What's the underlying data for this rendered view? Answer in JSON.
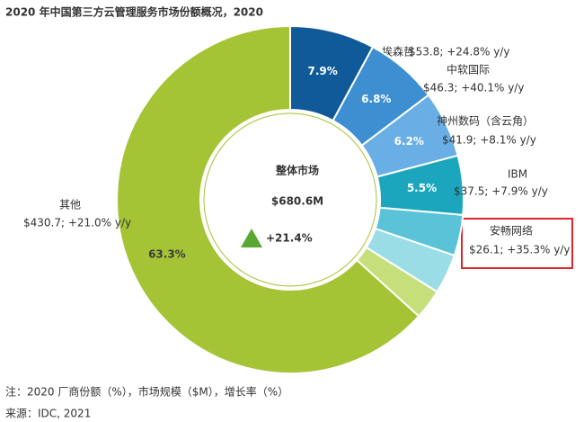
{
  "chart_data": {
    "type": "donut",
    "title": "2020 年中国第三方云管理服务市场份额概况，2020",
    "center_title": "整体市场",
    "center_value": "$680.6M",
    "center_growth": "+21.4%",
    "categories": [
      "埃森哲",
      "中软国际",
      "神州数码（含云角）",
      "IBM",
      "安畅网络",
      null,
      null,
      "其他"
    ],
    "values": [
      7.9,
      6.8,
      6.2,
      5.5,
      3.8,
      3.7,
      2.8,
      63.3
    ],
    "value_labels": [
      "7.9%",
      "6.8%",
      "6.2%",
      "5.5%",
      null,
      null,
      null,
      "63.3%"
    ],
    "details": [
      "$53.8; +24.8% y/y",
      "$46.3; +40.1% y/y",
      "$41.9; +8.1% y/y",
      "$37.5; +7.9% y/y",
      "$26.1; +35.3% y/y",
      null,
      null,
      "$430.7; +21.0% y/y"
    ],
    "colors": [
      "#105a9a",
      "#3d8fd1",
      "#6aaee6",
      "#1ba6be",
      "#5bc3d8",
      "#9adde6",
      "#c5df7a",
      "#a5c435"
    ]
  },
  "footnote": "注：2020 厂商份额（%），市场规模（$M），增长率（%）",
  "source": "来源：IDC, 2021"
}
